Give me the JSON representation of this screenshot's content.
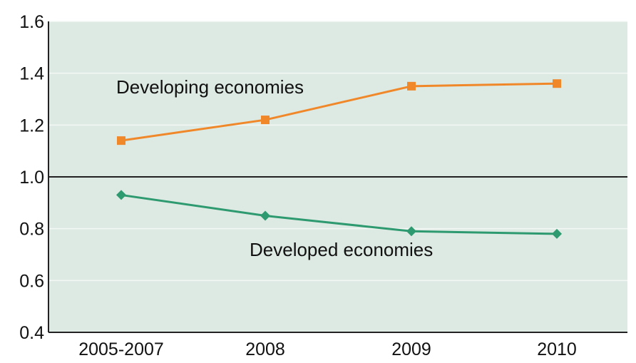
{
  "chart_data": {
    "type": "line",
    "title": "",
    "xlabel": "",
    "ylabel": "",
    "categories": [
      "2005-2007",
      "2008",
      "2009",
      "2010"
    ],
    "ylim": [
      0.4,
      1.6
    ],
    "yticks": [
      "0.4",
      "0.6",
      "0.8",
      "1.0",
      "1.2",
      "1.4",
      "1.6"
    ],
    "reference_line": 1.0,
    "grid": true,
    "background_color": "#dde9e3",
    "series": [
      {
        "name": "Developing economies",
        "values": [
          1.14,
          1.22,
          1.35,
          1.36
        ],
        "color": "#f0882a",
        "marker": "square"
      },
      {
        "name": "Developed economies",
        "values": [
          0.93,
          0.85,
          0.79,
          0.78
        ],
        "color": "#2e9a70",
        "marker": "diamond"
      }
    ]
  }
}
